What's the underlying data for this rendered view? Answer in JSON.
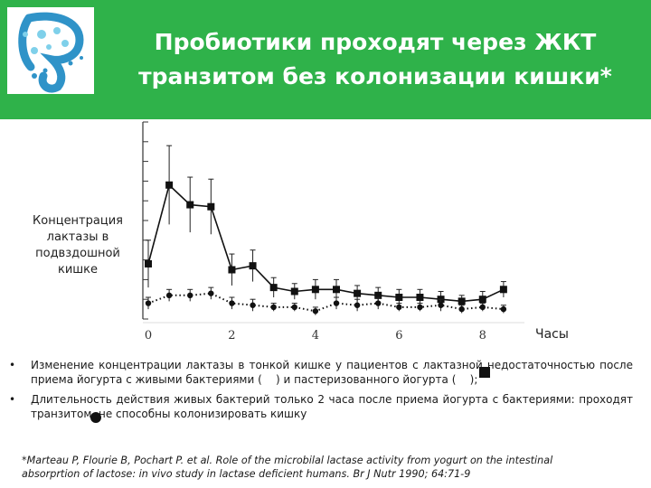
{
  "header": {
    "title_lines": [
      "Пробиотики проходят через ЖКТ",
      "транзитом без колонизации кишки*"
    ],
    "colors": {
      "background": "#2fb24a",
      "text": "#ffffff"
    },
    "logo": {
      "icon": "probiotic-logo-icon"
    }
  },
  "chart_data": {
    "type": "line",
    "ylabel_lines": [
      "Концентрация",
      "лактазы в",
      "подвздошной",
      "кишке"
    ],
    "xlabel": "Часы",
    "x_ticks": [
      "0",
      "2",
      "4",
      "6",
      "8"
    ],
    "xlim": [
      0,
      9
    ],
    "ylim": [
      0,
      100
    ],
    "grid": false,
    "series": [
      {
        "marker": "square",
        "linestyle": "solid",
        "x": [
          0,
          0.5,
          1.0,
          1.5,
          2.0,
          2.5,
          3.0,
          3.5,
          4.0,
          4.5,
          5.0,
          5.5,
          6.0,
          6.5,
          7.0,
          7.5,
          8.0,
          8.5
        ],
        "y": [
          28,
          68,
          58,
          57,
          25,
          27,
          16,
          14,
          15,
          15,
          13,
          12,
          11,
          11,
          10,
          9,
          10,
          15
        ],
        "err": [
          12,
          20,
          14,
          14,
          8,
          8,
          5,
          4,
          5,
          5,
          4,
          4,
          4,
          4,
          4,
          3,
          4,
          4
        ]
      },
      {
        "marker": "circle",
        "linestyle": "dotted",
        "x": [
          0,
          0.5,
          1.0,
          1.5,
          2.0,
          2.5,
          3.0,
          3.5,
          4.0,
          4.5,
          5.0,
          5.5,
          6.0,
          6.5,
          7.0,
          7.5,
          8.0,
          8.5
        ],
        "y": [
          8,
          12,
          12,
          13,
          8,
          7,
          6,
          6,
          4,
          8,
          7,
          8,
          6,
          6,
          7,
          5,
          6,
          5
        ],
        "err": [
          3,
          3,
          3,
          3,
          3,
          3,
          2,
          2,
          2,
          3,
          3,
          3,
          2,
          2,
          3,
          2,
          2,
          2
        ]
      }
    ]
  },
  "bullets": [
    {
      "text_before": "Изменение концентрации лактазы в тонкой кишке у пациентов с лактазной недостаточностью после приема йогурта с живыми бактериями (",
      "text_middle": ") и пастеризованного йогурта (",
      "text_after": ");"
    },
    {
      "text": "Длительность действия живых бактерий только 2 часа после приема йогурта с бактериями: проходят транзитом, не способны колонизировать кишку"
    }
  ],
  "reference_lines": [
    "*Marteau P, Flourie B, Pochart P. et al. Role of the microbilal lactase activity from yogurt on the intestinal",
    "absorprtion of lactose: in vivo study in lactase deficient humans. Br J Nutr 1990; 64:71-9"
  ]
}
